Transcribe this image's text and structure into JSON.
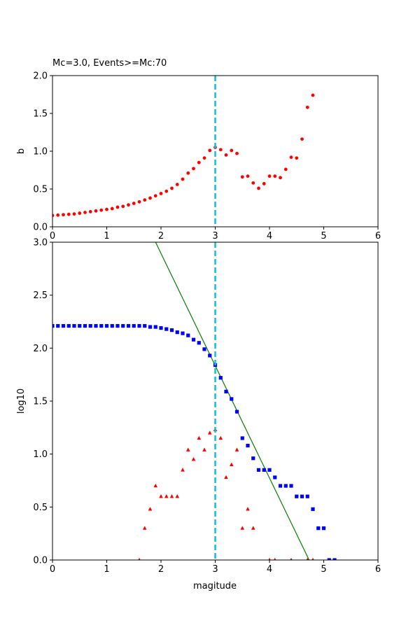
{
  "chart_data": [
    {
      "type": "scatter",
      "title": "Mc=3.0, Events>=Mc:70",
      "xlabel": "",
      "ylabel": "b",
      "xlim": [
        0,
        6
      ],
      "ylim": [
        0,
        2.0
      ],
      "xticks": [
        0,
        1,
        2,
        3,
        4,
        5,
        6
      ],
      "xtick_labels": [
        "0",
        "1",
        "2",
        "3",
        "4",
        "5",
        "6"
      ],
      "yticks": [
        0,
        0.5,
        1.0,
        1.5,
        2.0
      ],
      "ytick_labels": [
        "0.0",
        "0.5",
        "1.0",
        "1.5",
        "2.0"
      ],
      "mc_line": 3.0,
      "mc_line_color": "#17becf",
      "series": [
        {
          "marker": "dot",
          "color": "#ff0000",
          "x": [
            0.0,
            0.1,
            0.2,
            0.3,
            0.4,
            0.5,
            0.6,
            0.7,
            0.8,
            0.9,
            1.0,
            1.1,
            1.2,
            1.3,
            1.4,
            1.5,
            1.6,
            1.7,
            1.8,
            1.9,
            2.0,
            2.1,
            2.2,
            2.3,
            2.4,
            2.5,
            2.6,
            2.7,
            2.8,
            2.9,
            3.0,
            3.1,
            3.2,
            3.3,
            3.4,
            3.5,
            3.6,
            3.7,
            3.8,
            3.9,
            4.0,
            4.1,
            4.2,
            4.3,
            4.4,
            4.5,
            4.6,
            4.7,
            4.8
          ],
          "y": [
            0.15,
            0.155,
            0.16,
            0.165,
            0.17,
            0.18,
            0.19,
            0.2,
            0.21,
            0.22,
            0.23,
            0.24,
            0.26,
            0.27,
            0.29,
            0.31,
            0.33,
            0.355,
            0.38,
            0.41,
            0.44,
            0.47,
            0.51,
            0.56,
            0.63,
            0.71,
            0.77,
            0.85,
            0.91,
            1.01,
            1.05,
            1.02,
            0.95,
            1.01,
            0.97,
            0.66,
            0.67,
            0.58,
            0.51,
            0.57,
            0.67,
            0.67,
            0.65,
            0.76,
            0.92,
            0.91,
            1.16,
            1.58,
            1.74
          ]
        }
      ]
    },
    {
      "type": "scatter",
      "title": "",
      "xlabel": "magitude",
      "ylabel": "log10",
      "xlim": [
        0,
        6
      ],
      "ylim": [
        0,
        3.0
      ],
      "xticks": [
        0,
        1,
        2,
        3,
        4,
        5,
        6
      ],
      "xtick_labels": [
        "0",
        "1",
        "2",
        "3",
        "4",
        "5",
        "6"
      ],
      "yticks": [
        0,
        0.5,
        1.0,
        1.5,
        2.0,
        2.5,
        3.0
      ],
      "ytick_labels": [
        "0.0",
        "0.5",
        "1.0",
        "1.5",
        "2.0",
        "2.5",
        "3.0"
      ],
      "mc_line": 3.0,
      "mc_line_color": "#17becf",
      "fit_line": {
        "x": [
          1.9,
          4.73
        ],
        "y": [
          3.0,
          0.0
        ],
        "color": "#008000"
      },
      "series": [
        {
          "marker": "square",
          "color": "#0000ff",
          "x": [
            0.0,
            0.1,
            0.2,
            0.3,
            0.4,
            0.5,
            0.6,
            0.7,
            0.8,
            0.9,
            1.0,
            1.1,
            1.2,
            1.3,
            1.4,
            1.5,
            1.6,
            1.7,
            1.8,
            1.9,
            2.0,
            2.1,
            2.2,
            2.3,
            2.4,
            2.5,
            2.6,
            2.7,
            2.8,
            2.9,
            3.0,
            3.1,
            3.2,
            3.3,
            3.4,
            3.5,
            3.6,
            3.7,
            3.8,
            3.9,
            4.0,
            4.1,
            4.2,
            4.3,
            4.4,
            4.5,
            4.6,
            4.7,
            4.8,
            4.9,
            5.0,
            5.1,
            5.2
          ],
          "y": [
            2.21,
            2.21,
            2.21,
            2.21,
            2.21,
            2.21,
            2.21,
            2.21,
            2.21,
            2.21,
            2.21,
            2.21,
            2.21,
            2.21,
            2.21,
            2.21,
            2.21,
            2.21,
            2.2,
            2.2,
            2.19,
            2.18,
            2.17,
            2.15,
            2.14,
            2.12,
            2.08,
            2.05,
            1.99,
            1.93,
            1.84,
            1.72,
            1.59,
            1.52,
            1.4,
            1.15,
            1.08,
            0.96,
            0.85,
            0.85,
            0.85,
            0.78,
            0.7,
            0.7,
            0.7,
            0.6,
            0.6,
            0.6,
            0.48,
            0.3,
            0.3,
            0.0,
            0.0
          ]
        },
        {
          "marker": "triangle",
          "color": "#ff0000",
          "x": [
            1.6,
            1.7,
            1.8,
            1.9,
            2.0,
            2.1,
            2.2,
            2.3,
            2.4,
            2.5,
            2.6,
            2.7,
            2.8,
            2.9,
            3.0,
            3.1,
            3.2,
            3.3,
            3.4,
            3.5,
            3.6,
            3.7,
            4.0,
            4.1,
            4.4,
            4.7,
            4.8
          ],
          "y": [
            0.0,
            0.3,
            0.48,
            0.7,
            0.6,
            0.6,
            0.6,
            0.6,
            0.85,
            1.04,
            0.95,
            1.15,
            1.04,
            1.2,
            1.23,
            1.15,
            0.78,
            0.9,
            1.04,
            0.3,
            0.48,
            0.3,
            0.0,
            0.0,
            0.0,
            0.0,
            0.0
          ]
        }
      ]
    }
  ]
}
